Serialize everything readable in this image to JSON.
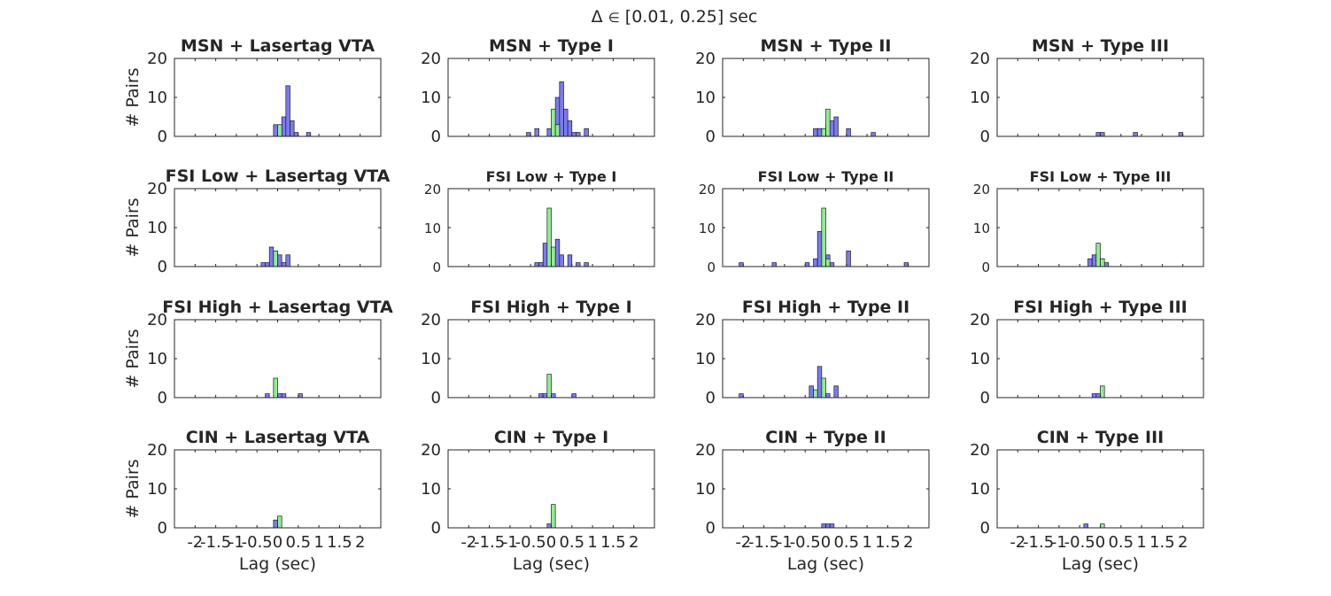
{
  "figure": {
    "title_prefix": "Δ",
    "title_symbol": "∈",
    "title_range": "[0.01, 0.25] sec"
  },
  "colors": {
    "blue": "#7b7bf0",
    "green": "#90ee90",
    "edge": "#1a1a1a",
    "axis": "#262626"
  },
  "chart_data": {
    "type": "bar",
    "xlabel": "Lag (sec)",
    "ylabel": "# Pairs",
    "xlim": [
      -2.5,
      2.5
    ],
    "ylim": [
      0,
      20
    ],
    "xticks": [
      -2,
      -1.5,
      -1,
      -0.5,
      0,
      0.5,
      1,
      1.5,
      2
    ],
    "xtick_labels": [
      "-2",
      "-1.5",
      "-1",
      "-0.5",
      "0",
      "0.5",
      "1",
      "1.5",
      "2"
    ],
    "yticks": [
      0,
      10,
      20
    ],
    "ytick_labels": [
      "0",
      "10",
      "20"
    ],
    "bin_width": 0.1,
    "panels": [
      {
        "title": "MSN + Lasertag VTA",
        "row": 0,
        "col": 0,
        "small": false,
        "blue": [
          [
            -0.05,
            3
          ],
          [
            0.15,
            5
          ],
          [
            0.25,
            13
          ],
          [
            0.35,
            4
          ],
          [
            0.45,
            1
          ],
          [
            0.75,
            1
          ]
        ],
        "green": [
          [
            0.05,
            3
          ]
        ]
      },
      {
        "title": "MSN + Type I",
        "row": 0,
        "col": 1,
        "small": false,
        "blue": [
          [
            -0.55,
            1
          ],
          [
            -0.35,
            2
          ],
          [
            -0.05,
            2
          ],
          [
            0.15,
            10
          ],
          [
            0.25,
            14
          ],
          [
            0.35,
            7
          ],
          [
            0.45,
            4
          ],
          [
            0.55,
            1
          ],
          [
            0.65,
            1
          ],
          [
            0.85,
            2
          ]
        ],
        "green": [
          [
            0.05,
            7
          ],
          [
            0.15,
            3
          ]
        ]
      },
      {
        "title": "MSN + Type II",
        "row": 0,
        "col": 2,
        "small": false,
        "blue": [
          [
            -0.25,
            2
          ],
          [
            -0.15,
            2
          ],
          [
            0.05,
            3
          ],
          [
            0.15,
            4
          ],
          [
            0.25,
            5
          ],
          [
            0.55,
            2
          ],
          [
            1.15,
            1
          ]
        ],
        "green": [
          [
            -0.05,
            2
          ],
          [
            0.05,
            7
          ]
        ]
      },
      {
        "title": "MSN + Type III",
        "row": 0,
        "col": 3,
        "small": false,
        "blue": [
          [
            -0.05,
            1
          ],
          [
            0.05,
            1
          ],
          [
            0.85,
            1
          ],
          [
            1.95,
            1
          ]
        ],
        "green": []
      },
      {
        "title": "FSI Low + Lasertag VTA",
        "row": 1,
        "col": 0,
        "small": false,
        "blue": [
          [
            -0.35,
            1
          ],
          [
            -0.25,
            1
          ],
          [
            -0.15,
            5
          ],
          [
            -0.05,
            4
          ],
          [
            0.05,
            3
          ],
          [
            0.15,
            1
          ],
          [
            0.25,
            3
          ]
        ],
        "green": [
          [
            -0.05,
            4
          ]
        ]
      },
      {
        "title": "FSI Low + Type I",
        "row": 1,
        "col": 1,
        "small": true,
        "blue": [
          [
            -0.35,
            1
          ],
          [
            -0.25,
            1
          ],
          [
            -0.15,
            6
          ],
          [
            -0.05,
            5
          ],
          [
            0.15,
            7
          ],
          [
            0.25,
            3
          ],
          [
            0.45,
            3
          ],
          [
            0.65,
            1
          ],
          [
            0.85,
            1
          ]
        ],
        "green": [
          [
            -0.05,
            15
          ],
          [
            0.05,
            5
          ]
        ]
      },
      {
        "title": "FSI Low + Type II",
        "row": 1,
        "col": 2,
        "small": true,
        "blue": [
          [
            -2.05,
            1
          ],
          [
            -1.25,
            1
          ],
          [
            -0.45,
            1
          ],
          [
            -0.25,
            2
          ],
          [
            -0.15,
            9
          ],
          [
            0.05,
            3
          ],
          [
            0.15,
            1
          ],
          [
            0.55,
            4
          ],
          [
            1.95,
            1
          ]
        ],
        "green": [
          [
            -0.05,
            15
          ],
          [
            0.05,
            2
          ]
        ]
      },
      {
        "title": "FSI Low + Type III",
        "row": 1,
        "col": 3,
        "small": true,
        "blue": [
          [
            -0.25,
            2
          ],
          [
            -0.15,
            3
          ],
          [
            -0.05,
            1
          ],
          [
            0.05,
            2
          ],
          [
            0.15,
            1
          ]
        ],
        "green": [
          [
            -0.05,
            6
          ],
          [
            0.05,
            2
          ]
        ]
      },
      {
        "title": "FSI High + Lasertag VTA",
        "row": 2,
        "col": 0,
        "small": false,
        "blue": [
          [
            -0.25,
            1
          ],
          [
            0.05,
            1
          ],
          [
            0.15,
            1
          ],
          [
            0.55,
            1
          ]
        ],
        "green": [
          [
            -0.05,
            5
          ]
        ]
      },
      {
        "title": "FSI High + Type I",
        "row": 2,
        "col": 1,
        "small": false,
        "blue": [
          [
            -0.25,
            1
          ],
          [
            -0.15,
            1
          ],
          [
            0.05,
            1
          ],
          [
            0.55,
            1
          ]
        ],
        "green": [
          [
            -0.05,
            6
          ]
        ]
      },
      {
        "title": "FSI High + Type II",
        "row": 2,
        "col": 2,
        "small": false,
        "blue": [
          [
            -2.05,
            1
          ],
          [
            -0.35,
            3
          ],
          [
            -0.15,
            8
          ],
          [
            0.05,
            1
          ],
          [
            0.25,
            3
          ]
        ],
        "green": [
          [
            -0.25,
            2
          ],
          [
            -0.05,
            5
          ]
        ]
      },
      {
        "title": "FSI High + Type III",
        "row": 2,
        "col": 3,
        "small": false,
        "blue": [
          [
            -0.15,
            1
          ],
          [
            -0.05,
            1
          ]
        ],
        "green": [
          [
            0.05,
            3
          ]
        ]
      },
      {
        "title": "CIN + Lasertag VTA",
        "row": 3,
        "col": 0,
        "small": false,
        "blue": [
          [
            -0.05,
            2
          ]
        ],
        "green": [
          [
            0.05,
            3
          ]
        ]
      },
      {
        "title": "CIN + Type I",
        "row": 3,
        "col": 1,
        "small": false,
        "blue": [
          [
            -0.05,
            1
          ]
        ],
        "green": [
          [
            0.05,
            6
          ]
        ]
      },
      {
        "title": "CIN + Type II",
        "row": 3,
        "col": 2,
        "small": false,
        "blue": [
          [
            -0.05,
            1
          ],
          [
            0.05,
            1
          ],
          [
            0.15,
            1
          ]
        ],
        "green": []
      },
      {
        "title": "CIN + Type III",
        "row": 3,
        "col": 3,
        "small": false,
        "blue": [
          [
            -0.35,
            1
          ]
        ],
        "green": [
          [
            0.05,
            1
          ]
        ]
      }
    ]
  }
}
